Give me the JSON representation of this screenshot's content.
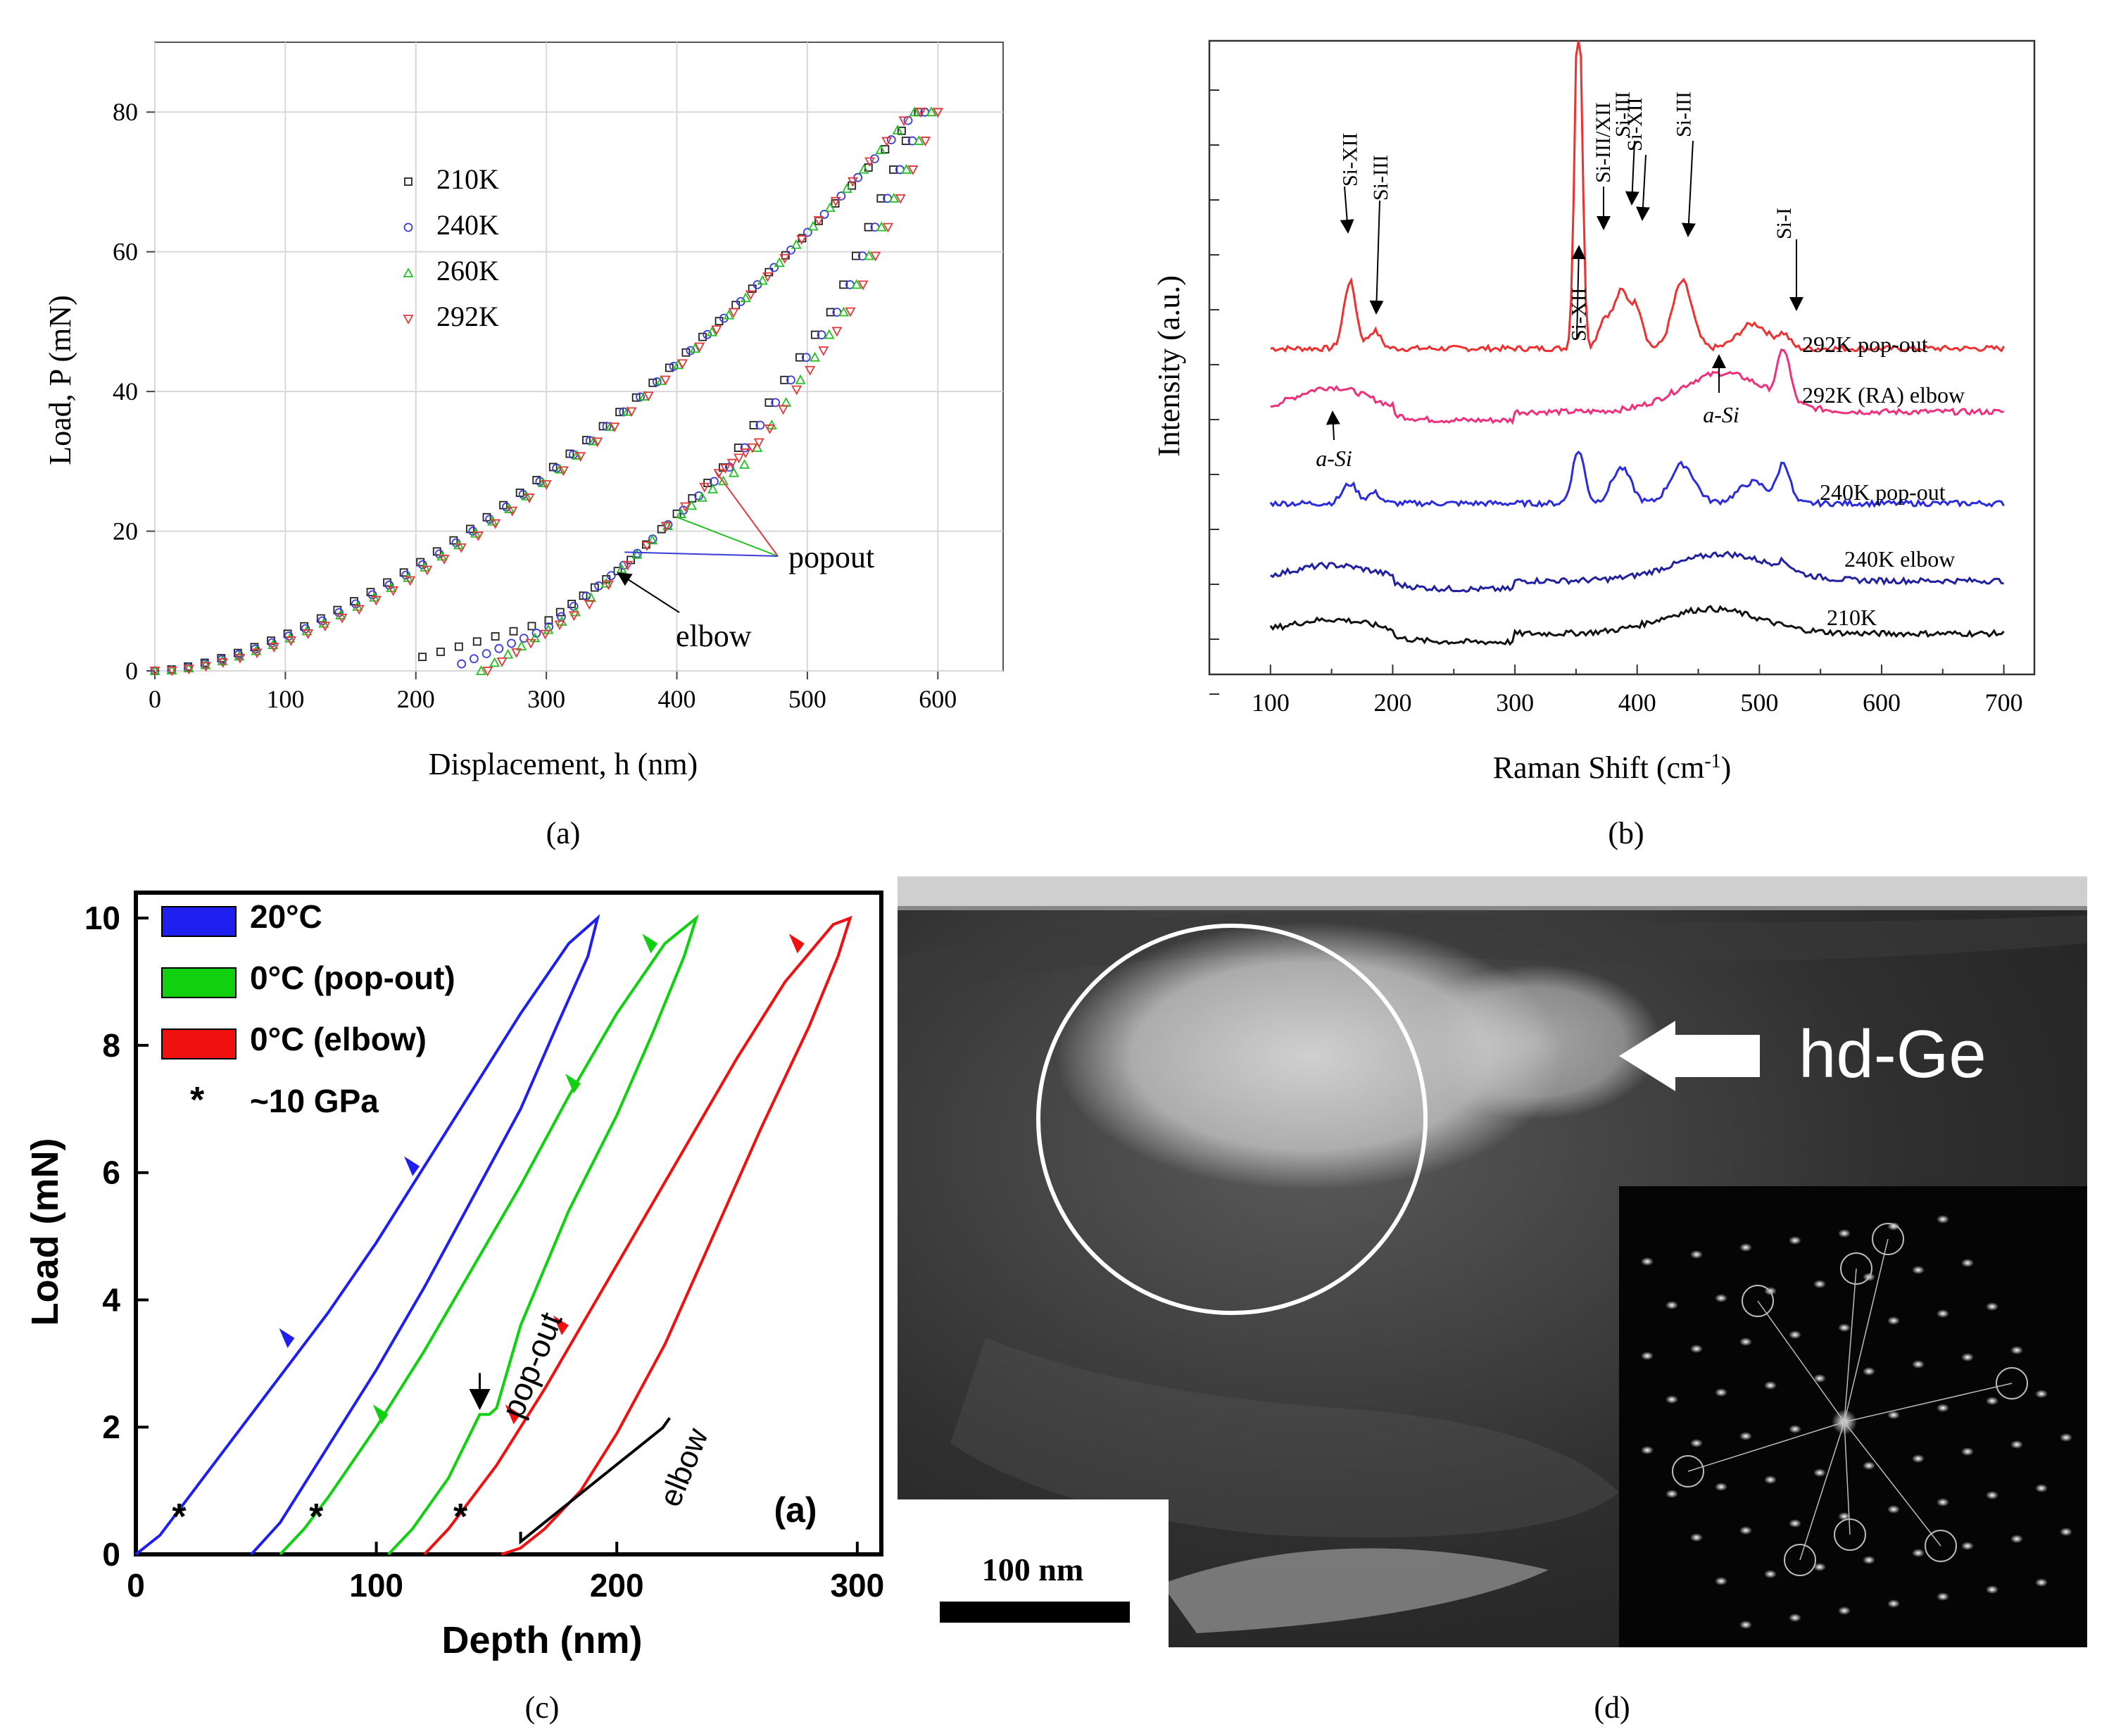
{
  "chart_data": [
    {
      "panel": "a",
      "type": "scatter",
      "xlabel": "Displacement, h (nm)",
      "ylabel": "Load, P (mN)",
      "xlim": [
        0,
        650
      ],
      "ylim": [
        0,
        90
      ],
      "xticks": [
        0,
        100,
        200,
        300,
        400,
        500,
        600
      ],
      "yticks": [
        0,
        20,
        40,
        60,
        80
      ],
      "grid": true,
      "legend_position": "upper-left",
      "series": [
        {
          "name": "210K",
          "marker": "square",
          "color": "#222222",
          "load_start": 0,
          "unload_end": 205,
          "max_depth": 585,
          "unload_x": [
            585,
            520,
            440,
            360,
            300,
            205
          ],
          "unload_y": [
            80,
            52,
            30,
            15,
            7,
            2
          ]
        },
        {
          "name": "240K",
          "marker": "circle",
          "color": "#3b3bd8",
          "load_start": 0,
          "unload_end": 235,
          "max_depth": 590,
          "unload_x": [
            590,
            525,
            445,
            365,
            300,
            235
          ],
          "unload_y": [
            80,
            52,
            30,
            16,
            6,
            1
          ]
        },
        {
          "name": "260K",
          "marker": "triangle-up",
          "color": "#22c022",
          "load_start": 0,
          "unload_end": 250,
          "max_depth": 595,
          "unload_x": [
            595,
            530,
            455,
            400,
            320,
            250
          ],
          "unload_y": [
            80,
            52,
            30,
            22,
            8,
            0
          ]
        },
        {
          "name": "292K",
          "marker": "triangle-down",
          "color": "#e23a3a",
          "load_start": 0,
          "unload_end": 255,
          "max_depth": 600,
          "unload_x": [
            600,
            535,
            465,
            430,
            330,
            255
          ],
          "unload_y": [
            80,
            52,
            33,
            28,
            9,
            0
          ]
        }
      ],
      "annotations": [
        {
          "text": "popout",
          "points_to": [
            [
              430,
              28
            ],
            [
              400,
              22
            ],
            [
              360,
              17
            ]
          ]
        },
        {
          "text": "elbow",
          "points_to": [
            [
              355,
              14
            ]
          ]
        }
      ],
      "caption": "(a)"
    },
    {
      "panel": "b",
      "type": "line",
      "xlabel": "Raman Shift (cm",
      "xlabel_sup": "-1",
      "xlabel_end": ")",
      "ylabel": "Intensity (a.u.)",
      "xlim": [
        50,
        725
      ],
      "xticks": [
        100,
        200,
        300,
        400,
        500,
        600,
        700
      ],
      "series": [
        {
          "name": "292K pop-out",
          "color": "#f03030"
        },
        {
          "name": "292K (RA) elbow",
          "color": "#f0307a"
        },
        {
          "name": "240K pop-out",
          "color": "#2a2ae0"
        },
        {
          "name": "240K elbow",
          "color": "#2020a0"
        },
        {
          "name": "210K",
          "color": "#111111"
        }
      ],
      "peak_labels": [
        {
          "text": "Si-XII",
          "x": 165
        },
        {
          "text": "Si-III",
          "x": 185
        },
        {
          "text": "Si-XII",
          "x": 352
        },
        {
          "text": "Si-III/XII",
          "x": 372
        },
        {
          "text": "Si-III",
          "x": 387
        },
        {
          "text": "Si-XII",
          "x": 397
        },
        {
          "text": "Si-III",
          "x": 437
        },
        {
          "text": "Si-I",
          "x": 520
        },
        {
          "text": "a-Si",
          "x": 150
        },
        {
          "text": "a-Si",
          "x": 470
        }
      ],
      "caption": "(b)"
    },
    {
      "panel": "c",
      "type": "line",
      "xlabel": "Depth (nm)",
      "ylabel": "Load (mN)",
      "xlim": [
        0,
        310
      ],
      "ylim": [
        0,
        10.4
      ],
      "xticks": [
        0,
        100,
        200,
        300
      ],
      "yticks": [
        0,
        2,
        4,
        6,
        8,
        10
      ],
      "legend_position": "upper-left",
      "legend": [
        {
          "label": "20°C",
          "color": "#1f1ff0"
        },
        {
          "label": "0°C (pop-out)",
          "color": "#10d010"
        },
        {
          "label": "0°C (elbow)",
          "color": "#f01010"
        }
      ],
      "star_note": "*",
      "star_text": "~10 GPa",
      "series": [
        {
          "name": "20°C",
          "color": "#1f1ff0",
          "x": [
            0,
            10,
            20,
            40,
            60,
            80,
            100,
            120,
            140,
            160,
            180,
            192,
            188,
            175,
            160,
            140,
            120,
            100,
            80,
            60,
            48
          ],
          "y": [
            0,
            0.3,
            0.8,
            1.8,
            2.8,
            3.8,
            4.9,
            6.1,
            7.3,
            8.5,
            9.6,
            10,
            9.4,
            8.3,
            7.0,
            5.6,
            4.2,
            2.9,
            1.7,
            0.5,
            0
          ]
        },
        {
          "name": "0°C (pop-out)",
          "color": "#10d010",
          "x": [
            60,
            70,
            80,
            100,
            120,
            140,
            160,
            180,
            200,
            220,
            233,
            228,
            215,
            200,
            180,
            160,
            150,
            147,
            143,
            130,
            115,
            105
          ],
          "y": [
            0,
            0.4,
            0.9,
            2.0,
            3.2,
            4.5,
            5.8,
            7.2,
            8.5,
            9.6,
            10,
            9.4,
            8.2,
            6.9,
            5.4,
            3.6,
            2.3,
            2.2,
            2.2,
            1.2,
            0.4,
            0
          ]
        },
        {
          "name": "0°C (elbow)",
          "color": "#f01010",
          "x": [
            120,
            130,
            140,
            150,
            170,
            190,
            210,
            230,
            250,
            270,
            290,
            297,
            292,
            280,
            260,
            240,
            220,
            200,
            185,
            170,
            160,
            152
          ],
          "y": [
            0,
            0.4,
            0.9,
            1.4,
            2.6,
            3.9,
            5.2,
            6.5,
            7.8,
            9.0,
            9.9,
            10,
            9.4,
            8.3,
            6.7,
            5.0,
            3.3,
            1.9,
            1.0,
            0.4,
            0.1,
            0
          ]
        }
      ],
      "markers": [
        {
          "color": "#1f1ff0",
          "x": 118,
          "y": 6.1
        },
        {
          "color": "#1f1ff0",
          "x": 66,
          "y": 3.4
        },
        {
          "color": "#10d010",
          "x": 217,
          "y": 9.6
        },
        {
          "color": "#10d010",
          "x": 185,
          "y": 7.4
        },
        {
          "color": "#10d010",
          "x": 105,
          "y": 2.2
        },
        {
          "color": "#f01010",
          "x": 278,
          "y": 9.6
        },
        {
          "color": "#f01010",
          "x": 180,
          "y": 3.6
        },
        {
          "color": "#f01010",
          "x": 160,
          "y": 2.2
        }
      ],
      "stars": [
        [
          18,
          0.6
        ],
        [
          75,
          0.6
        ],
        [
          135,
          0.6
        ]
      ],
      "annotations": [
        {
          "text": "pop-out"
        },
        {
          "text": "elbow"
        }
      ],
      "panel_label": "(a)",
      "caption": "(c)"
    }
  ],
  "image_d": {
    "label": "hd-Ge",
    "scale_bar": "100 nm",
    "caption": "(d)"
  }
}
